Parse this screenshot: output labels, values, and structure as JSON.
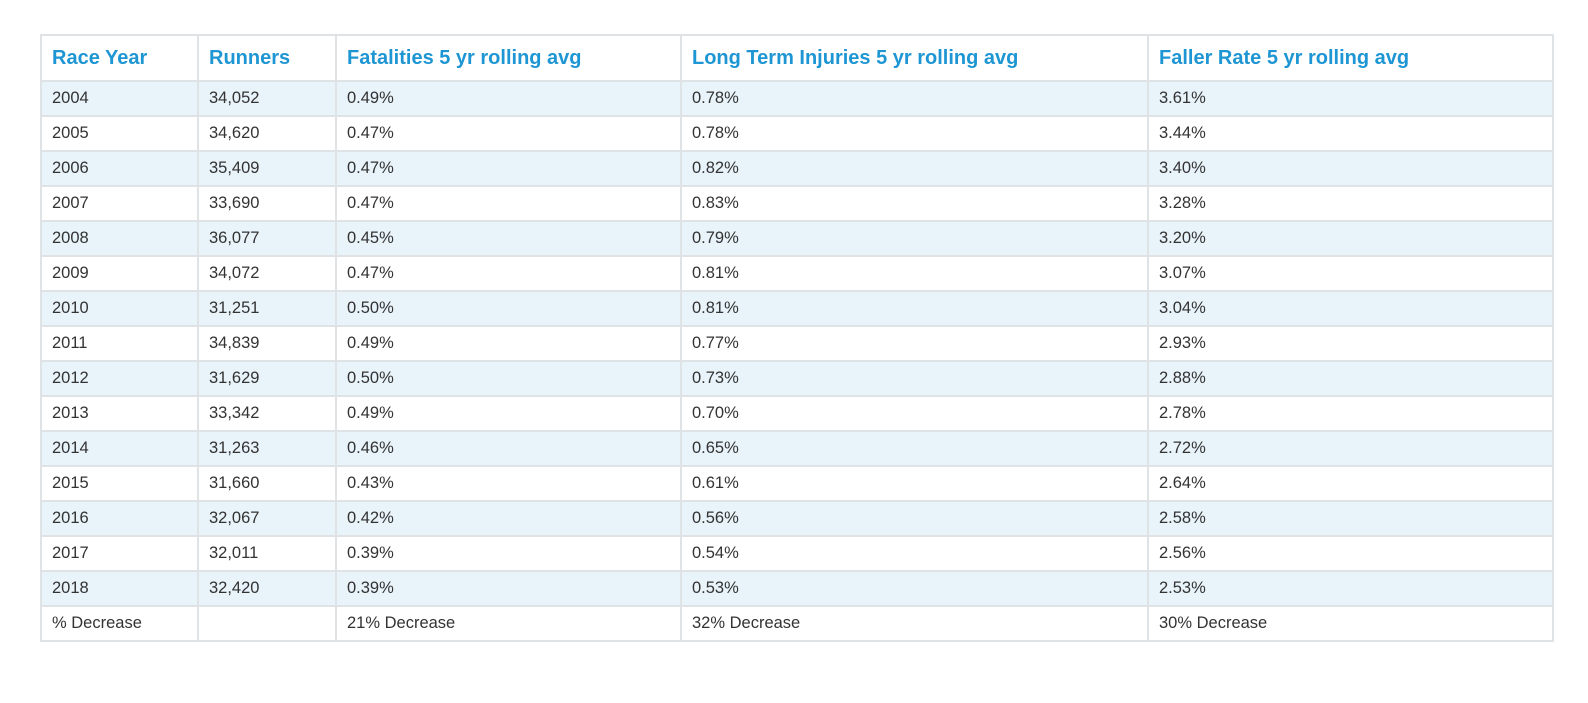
{
  "table": {
    "headers": [
      "Race Year",
      "Runners",
      "Fatalities 5 yr rolling avg",
      "Long Term Injuries 5 yr rolling avg",
      "Faller Rate 5 yr rolling avg"
    ],
    "rows": [
      [
        "2004",
        "34,052",
        "0.49%",
        "0.78%",
        "3.61%"
      ],
      [
        "2005",
        "34,620",
        "0.47%",
        "0.78%",
        "3.44%"
      ],
      [
        "2006",
        "35,409",
        "0.47%",
        "0.82%",
        "3.40%"
      ],
      [
        "2007",
        "33,690",
        "0.47%",
        "0.83%",
        "3.28%"
      ],
      [
        "2008",
        "36,077",
        "0.45%",
        "0.79%",
        "3.20%"
      ],
      [
        "2009",
        "34,072",
        "0.47%",
        "0.81%",
        "3.07%"
      ],
      [
        "2010",
        "31,251",
        "0.50%",
        "0.81%",
        "3.04%"
      ],
      [
        "2011",
        "34,839",
        "0.49%",
        "0.77%",
        "2.93%"
      ],
      [
        "2012",
        "31,629",
        "0.50%",
        "0.73%",
        "2.88%"
      ],
      [
        "2013",
        "33,342",
        "0.49%",
        "0.70%",
        "2.78%"
      ],
      [
        "2014",
        "31,263",
        "0.46%",
        "0.65%",
        "2.72%"
      ],
      [
        "2015",
        "31,660",
        "0.43%",
        "0.61%",
        "2.64%"
      ],
      [
        "2016",
        "32,067",
        "0.42%",
        "0.56%",
        "2.58%"
      ],
      [
        "2017",
        "32,011",
        "0.39%",
        "0.54%",
        "2.56%"
      ],
      [
        "2018",
        "32,420",
        "0.39%",
        "0.53%",
        "2.53%"
      ]
    ],
    "summary": [
      "% Decrease",
      "",
      "21% Decrease",
      "32% Decrease",
      "30% Decrease"
    ]
  },
  "colors": {
    "header_text": "#1e96d3",
    "stripe": "#e8f3fa",
    "border": "#dfe3e6",
    "body_text": "#333333"
  }
}
